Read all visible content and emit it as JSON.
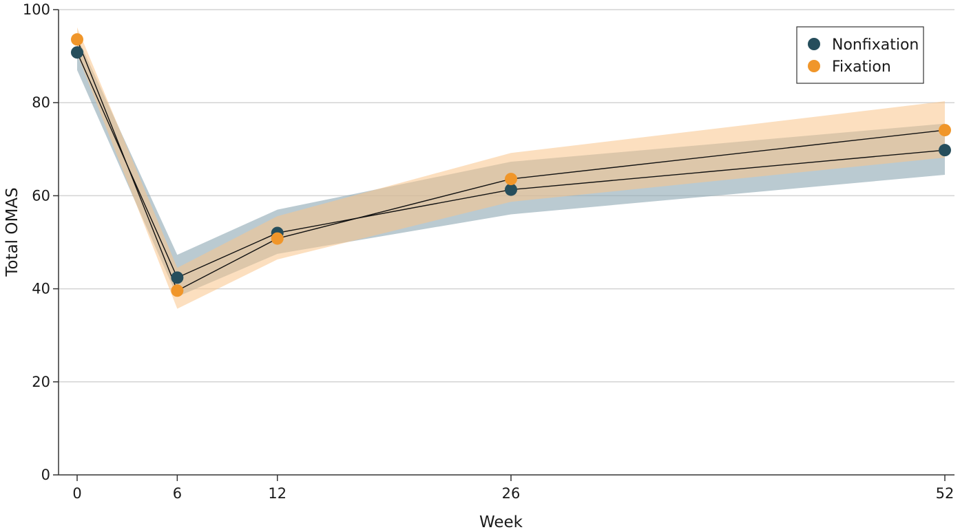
{
  "chart_data": {
    "type": "line",
    "title": "",
    "xlabel": "Week",
    "ylabel": "Total OMAS",
    "x": [
      0,
      6,
      12,
      26,
      52
    ],
    "x_ticks": [
      0,
      6,
      12,
      26,
      52
    ],
    "y_ticks": [
      0,
      20,
      40,
      60,
      80,
      100
    ],
    "xlim": [
      -1,
      52.5
    ],
    "ylim": [
      0,
      100
    ],
    "grid": "horizontal",
    "legend_position": "top-right",
    "series": [
      {
        "name": "Nonfixation",
        "color": "#264e5c",
        "band_color": "#8fa9b5",
        "values": [
          90.8,
          42.4,
          52.0,
          61.3,
          69.8
        ],
        "ci_lower": [
          87.0,
          38.3,
          47.5,
          56.0,
          64.5
        ],
        "ci_upper": [
          94.2,
          47.3,
          57.0,
          67.3,
          75.5
        ]
      },
      {
        "name": "Fixation",
        "color": "#f0962a",
        "band_color": "#f9c48a",
        "values": [
          93.6,
          39.6,
          50.8,
          63.6,
          74.1
        ],
        "ci_lower": [
          90.5,
          35.7,
          46.3,
          58.7,
          68.2
        ],
        "ci_upper": [
          96.2,
          44.5,
          55.6,
          69.2,
          80.3
        ]
      }
    ]
  }
}
